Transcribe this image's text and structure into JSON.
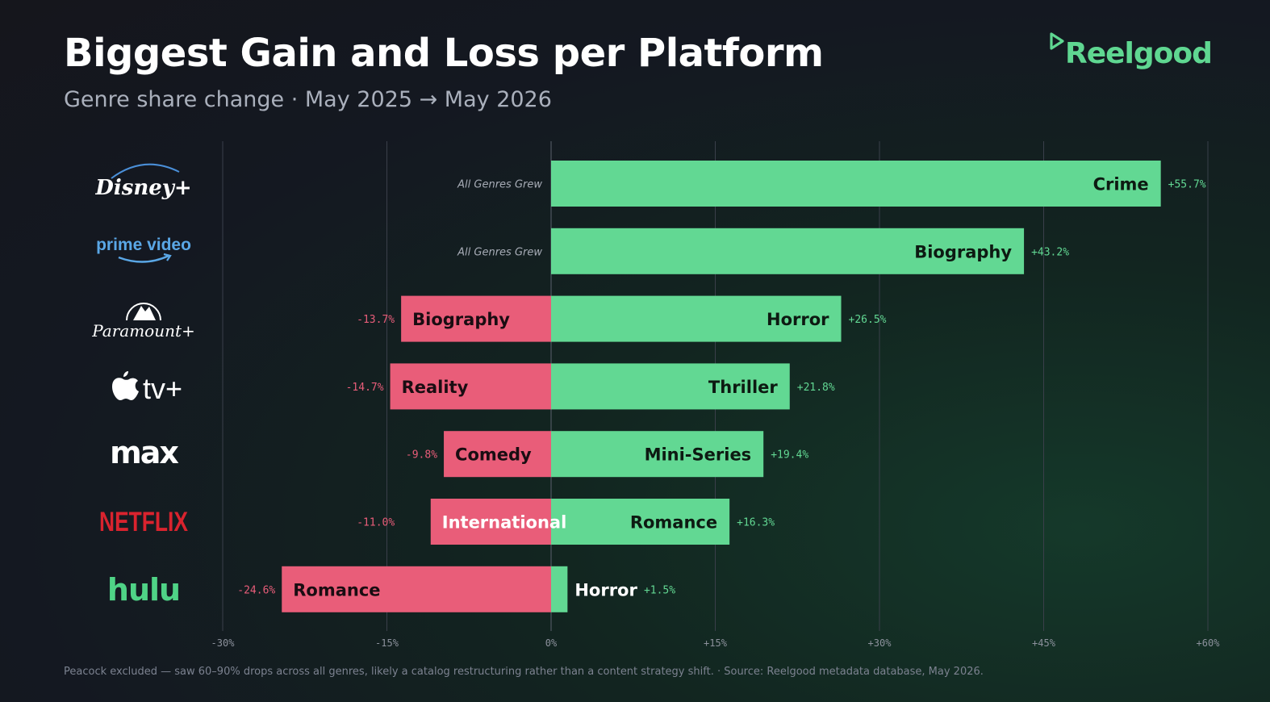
{
  "header": {
    "title": "Biggest Gain and Loss per Platform",
    "subtitle": "Genre share change · May 2025 → May 2026",
    "brand": "Reelgood"
  },
  "footer": {
    "note": "Peacock excluded — saw 60–90% drops across all genres, likely a catalog restructuring rather than a content strategy shift.  ·  Source: Reelgood metadata database, May 2026."
  },
  "logos": {
    "disney": "Disney+",
    "prime": "prime video",
    "paramount": "Paramount+",
    "appletv": "tv+",
    "max": "max",
    "netflix": "NETFLIX",
    "hulu": "hulu"
  },
  "colors": {
    "gain": "#62d893",
    "loss": "#e95d79",
    "gain_text": "#62d893",
    "loss_text": "#e95d79",
    "grid": "#3a3f4a",
    "axis_text": "#8c919c"
  },
  "chart_data": {
    "type": "bar",
    "orientation": "horizontal-diverging",
    "xlim": [
      -30,
      60
    ],
    "ticks": [
      -30,
      -15,
      0,
      15,
      30,
      45,
      60
    ],
    "tick_labels": [
      "-30%",
      "-15%",
      "0%",
      "+15%",
      "+30%",
      "+45%",
      "+60%"
    ],
    "grid": true,
    "categories": [
      "Disney+",
      "prime video",
      "Paramount+",
      "Apple TV+",
      "max",
      "NETFLIX",
      "hulu"
    ],
    "gain": {
      "genres": [
        "Crime",
        "Biography",
        "Horror",
        "Thriller",
        "Mini-Series",
        "Romance",
        "Horror"
      ],
      "values": [
        55.7,
        43.2,
        26.5,
        21.8,
        19.4,
        16.3,
        1.5
      ],
      "labels": [
        "+55.7%",
        "+43.2%",
        "+26.5%",
        "+21.8%",
        "+19.4%",
        "+16.3%",
        "+1.5%"
      ]
    },
    "loss": {
      "genres": [
        "",
        "",
        "Biography",
        "Reality",
        "Comedy",
        "International",
        "Romance"
      ],
      "values": [
        null,
        null,
        -13.7,
        -14.7,
        -9.8,
        -11.0,
        -24.6
      ],
      "labels": [
        "",
        "",
        "-13.7%",
        "-14.7%",
        "-9.8%",
        "-11.0%",
        "-24.6%"
      ],
      "none_text": [
        "All Genres Grew",
        "All Genres Grew",
        "",
        "",
        "",
        "",
        ""
      ]
    }
  }
}
